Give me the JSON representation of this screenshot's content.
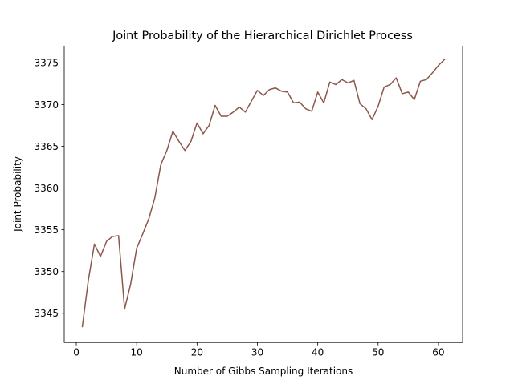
{
  "chart_data": {
    "type": "line",
    "title": "Joint Probability of the Hierarchical Dirichlet Process",
    "xlabel": "Number of Gibbs Sampling Iterations",
    "ylabel": "Joint Probability",
    "xlim": [
      -2,
      64
    ],
    "ylim": [
      3341.5,
      3377.0
    ],
    "xticks": [
      0,
      10,
      20,
      30,
      40,
      50,
      60
    ],
    "xtick_labels": [
      "0",
      "10",
      "20",
      "30",
      "40",
      "50",
      "60"
    ],
    "yticks": [
      3345,
      3350,
      3355,
      3360,
      3365,
      3370,
      3375
    ],
    "ytick_labels": [
      "3345",
      "3350",
      "3355",
      "3360",
      "3365",
      "3370",
      "3375"
    ],
    "grid": false,
    "legend": "none",
    "line_color": "#8c564b",
    "x": [
      1,
      2,
      3,
      4,
      5,
      6,
      7,
      8,
      9,
      10,
      11,
      12,
      13,
      14,
      15,
      16,
      17,
      18,
      19,
      20,
      21,
      22,
      23,
      24,
      25,
      26,
      27,
      28,
      29,
      30,
      31,
      32,
      33,
      34,
      35,
      36,
      37,
      38,
      39,
      40,
      41,
      42,
      43,
      44,
      45,
      46,
      47,
      48,
      49,
      50,
      51,
      52,
      53,
      54,
      55,
      56,
      57,
      58,
      59,
      60,
      61
    ],
    "series": [
      {
        "values": [
          3343.4,
          3349.0,
          3353.3,
          3351.8,
          3353.6,
          3354.2,
          3354.3,
          3345.5,
          3348.5,
          3352.8,
          3354.5,
          3356.3,
          3358.8,
          3362.8,
          3364.5,
          3366.8,
          3365.6,
          3364.5,
          3365.6,
          3367.8,
          3366.5,
          3367.5,
          3369.9,
          3368.6,
          3368.6,
          3369.1,
          3369.7,
          3369.1,
          3370.4,
          3371.7,
          3371.1,
          3371.8,
          3372.0,
          3371.6,
          3371.5,
          3370.2,
          3370.3,
          3369.5,
          3369.2,
          3371.5,
          3370.2,
          3372.7,
          3372.4,
          3373.0,
          3372.6,
          3372.9,
          3370.1,
          3369.5,
          3368.2,
          3369.8,
          3372.1,
          3372.4,
          3373.2,
          3371.3,
          3371.5,
          3370.6,
          3372.8,
          3373.0,
          3373.8,
          3374.7,
          3375.4
        ]
      }
    ]
  }
}
